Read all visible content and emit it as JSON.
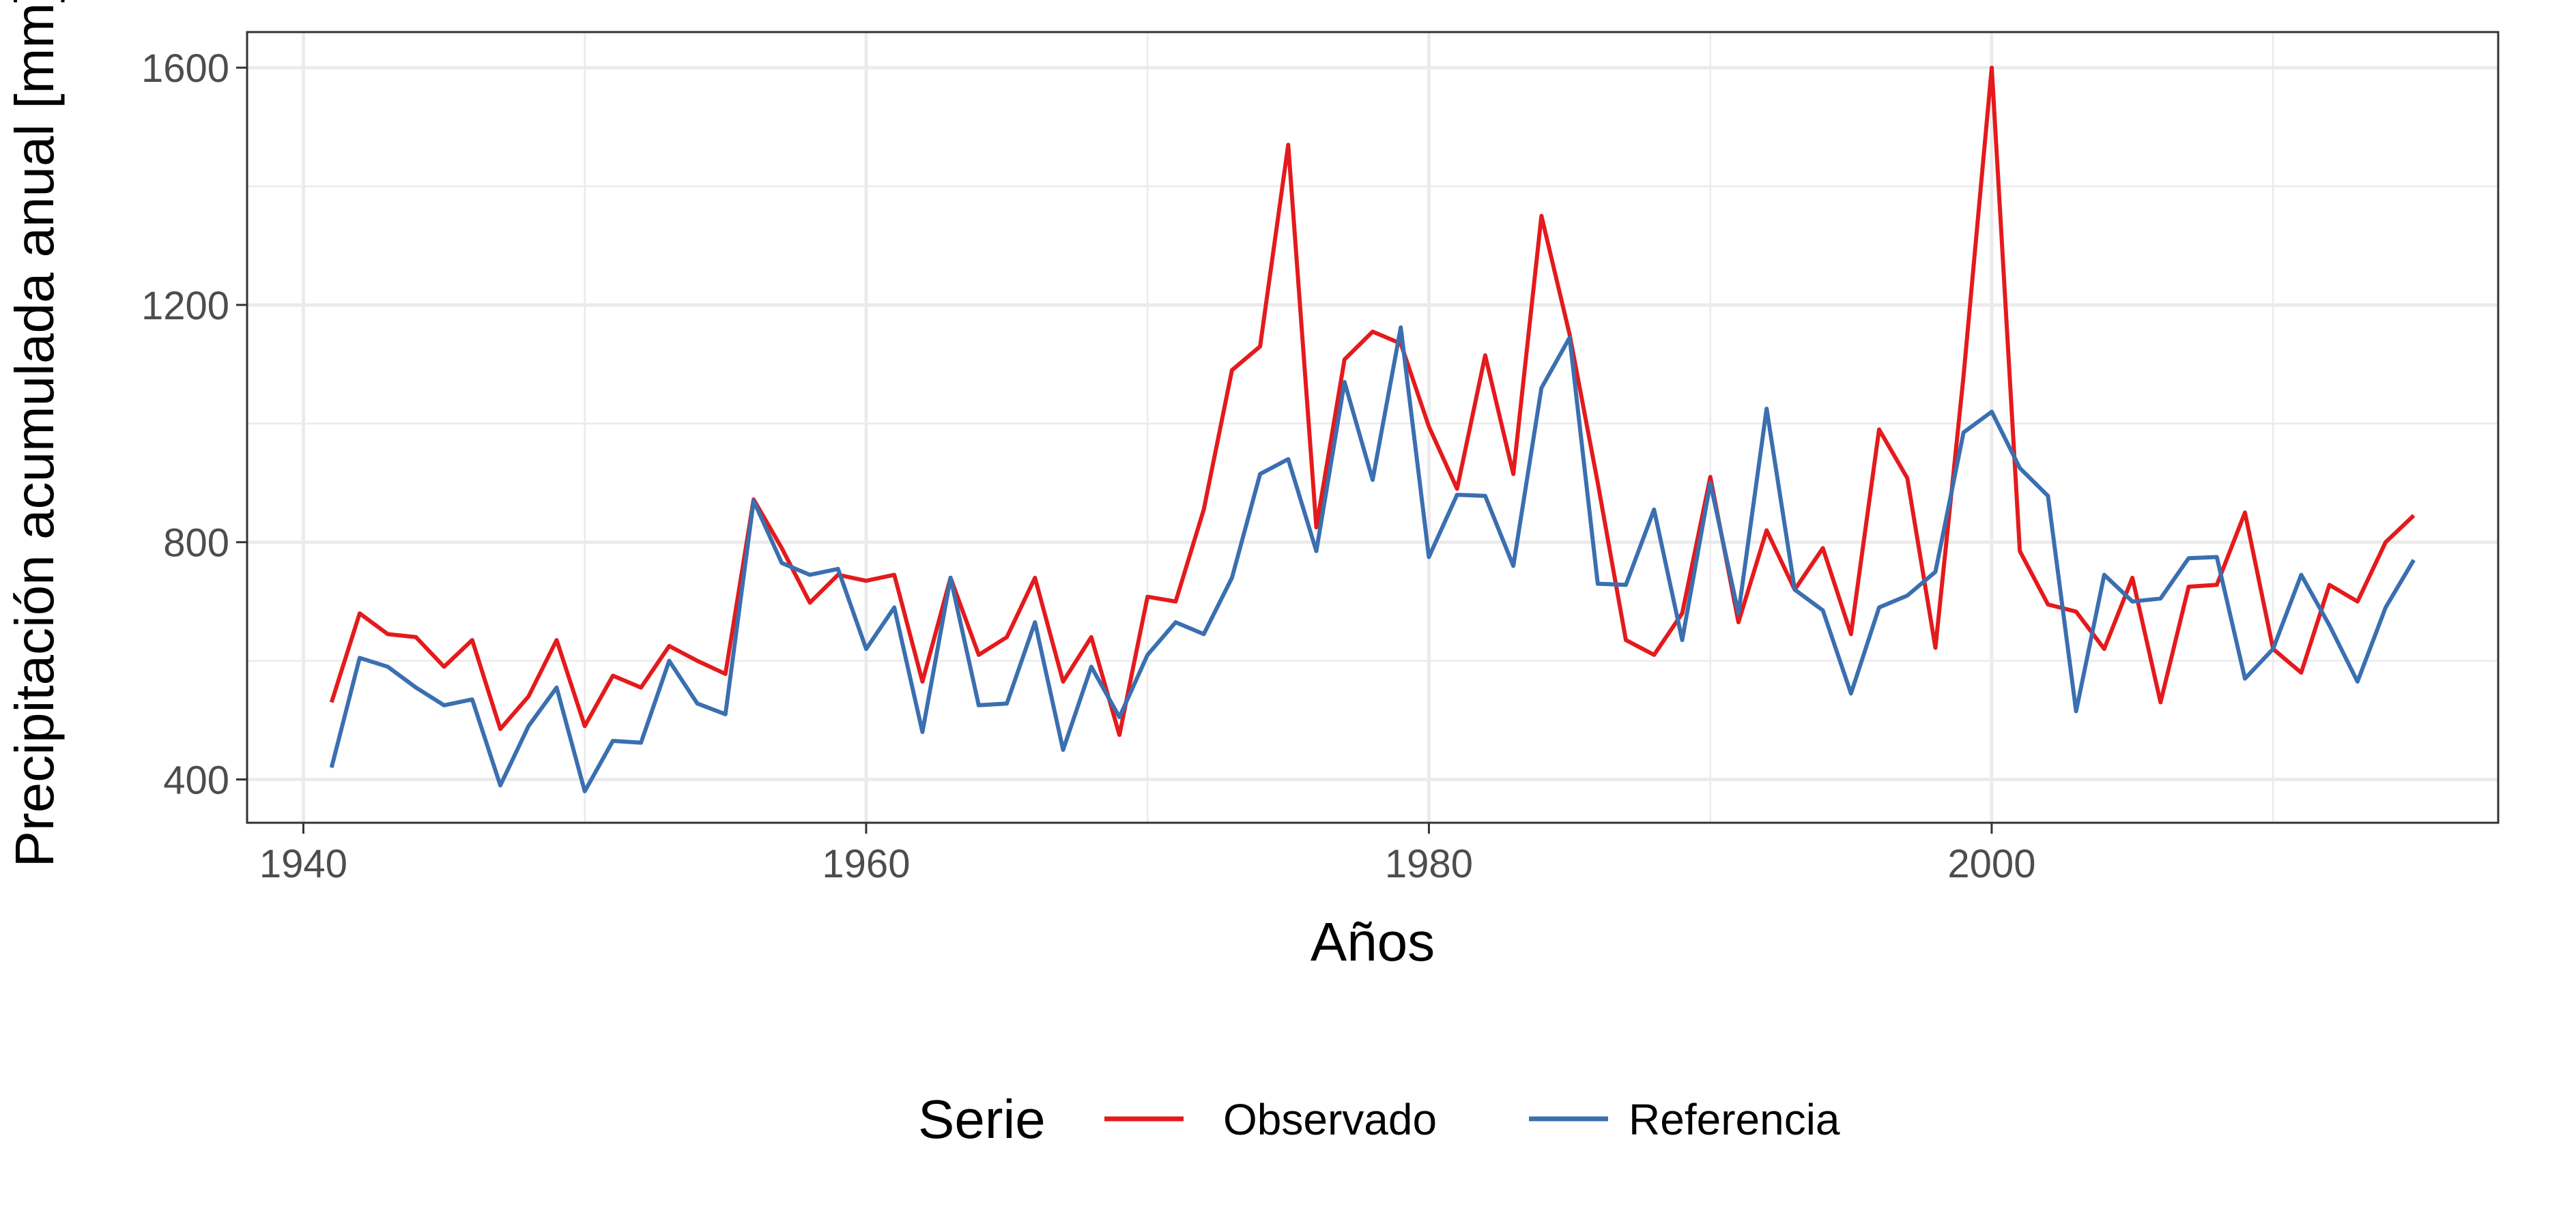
{
  "chart_data": {
    "type": "line",
    "title": "",
    "xlabel": "Años",
    "ylabel": "Precipitación acumulada anual [mm]",
    "xlim": [
      1938,
      2018
    ],
    "ylim": [
      327,
      1660
    ],
    "x_ticks": [
      1940,
      1960,
      1980,
      2000
    ],
    "y_ticks": [
      400,
      800,
      1200,
      1600
    ],
    "grid": true,
    "legend": {
      "title": "Serie",
      "position": "bottom"
    },
    "x": [
      1941,
      1942,
      1943,
      1944,
      1945,
      1946,
      1947,
      1948,
      1949,
      1950,
      1951,
      1952,
      1953,
      1954,
      1955,
      1956,
      1957,
      1958,
      1959,
      1960,
      1961,
      1962,
      1963,
      1964,
      1965,
      1966,
      1967,
      1968,
      1969,
      1970,
      1971,
      1972,
      1973,
      1974,
      1975,
      1976,
      1977,
      1978,
      1979,
      1980,
      1981,
      1982,
      1983,
      1984,
      1985,
      1986,
      1987,
      1988,
      1989,
      1990,
      1991,
      1992,
      1993,
      1994,
      1995,
      1996,
      1997,
      1998,
      1999,
      2000,
      2001,
      2002,
      2003,
      2004,
      2005,
      2006,
      2007,
      2008,
      2009,
      2010,
      2011,
      2012,
      2013,
      2014,
      2015
    ],
    "series": [
      {
        "name": "Observado",
        "color": "#E41A1C",
        "values": [
          530,
          680,
          645,
          640,
          590,
          635,
          485,
          540,
          635,
          490,
          575,
          555,
          625,
          600,
          578,
          872,
          790,
          698,
          745,
          735,
          745,
          565,
          740,
          610,
          640,
          740,
          565,
          640,
          475,
          708,
          700,
          855,
          1090,
          1130,
          1470,
          825,
          1108,
          1155,
          1135,
          995,
          890,
          1115,
          915,
          1350,
          1150,
          900,
          635,
          610,
          680,
          910,
          665,
          820,
          720,
          790,
          645,
          990,
          908,
          622,
          1080,
          1600,
          785,
          695,
          683,
          620,
          740,
          530,
          725,
          728,
          850,
          620,
          580,
          728,
          700,
          800,
          845
        ]
      },
      {
        "name": "Referencia",
        "color": "#3A6FB0",
        "values": [
          420,
          605,
          590,
          555,
          525,
          535,
          390,
          490,
          555,
          380,
          465,
          462,
          600,
          528,
          510,
          870,
          765,
          745,
          755,
          620,
          690,
          480,
          740,
          525,
          528,
          665,
          450,
          590,
          505,
          610,
          665,
          645,
          740,
          915,
          940,
          785,
          1070,
          905,
          1162,
          775,
          880,
          878,
          760,
          1060,
          1145,
          730,
          728,
          855,
          635,
          900,
          680,
          1025,
          720,
          685,
          545,
          690,
          710,
          750,
          985,
          1020,
          925,
          878,
          515,
          745,
          700,
          705,
          773,
          775,
          570,
          620,
          745,
          660,
          565,
          690,
          770
        ]
      }
    ]
  }
}
